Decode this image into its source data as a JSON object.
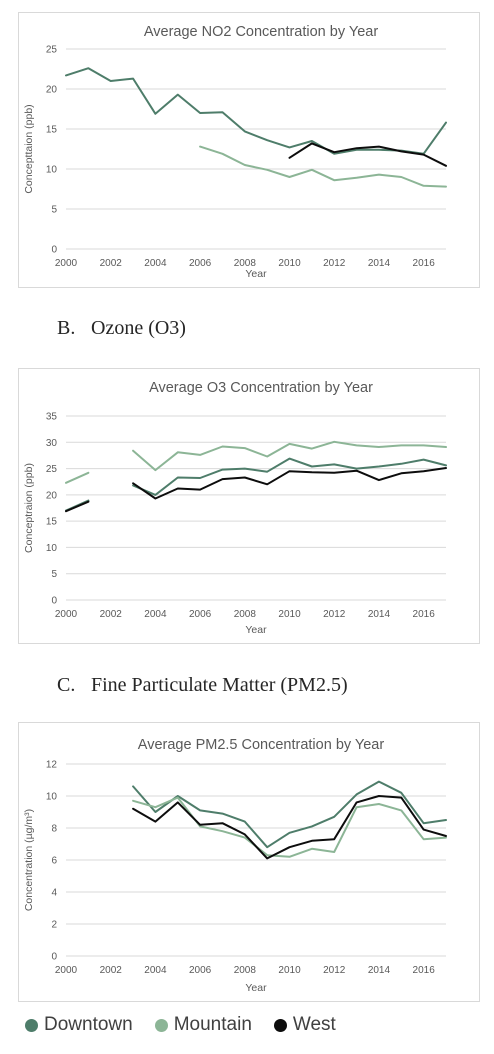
{
  "sections": [
    {
      "letter": "B.",
      "label": "Ozone (O3)"
    },
    {
      "letter": "C.",
      "label": "Fine Particulate Matter (PM2.5)"
    }
  ],
  "legend": [
    {
      "label": "Downtown",
      "color": "#4e7d6a"
    },
    {
      "label": "Mountain",
      "color": "#8cb596"
    },
    {
      "label": "West",
      "color": "#0d0d0d"
    }
  ],
  "chart_data": [
    {
      "type": "line",
      "title": "Average NO2 Concentration by Year",
      "xlabel": "Year",
      "ylabel": "Concepttaion (ppb)",
      "xlim": [
        2000,
        2017
      ],
      "ylim": [
        0,
        25
      ],
      "yticks": [
        0,
        5,
        10,
        15,
        20,
        25
      ],
      "xticks": [
        2000,
        2002,
        2004,
        2006,
        2008,
        2010,
        2012,
        2014,
        2016
      ],
      "grid": true,
      "series": [
        {
          "name": "Downtown",
          "color": "#4e7d6a",
          "x": [
            2000,
            2001,
            2002,
            2003,
            2004,
            2005,
            2006,
            2007,
            2008,
            2009,
            2010,
            2011,
            2012,
            2013,
            2014,
            2015,
            2016,
            2017
          ],
          "y": [
            21.7,
            22.6,
            21.0,
            21.3,
            16.9,
            19.3,
            17.0,
            17.1,
            14.7,
            13.6,
            12.7,
            13.5,
            11.9,
            12.4,
            12.4,
            12.3,
            11.9,
            15.8
          ]
        },
        {
          "name": "Mountain",
          "color": "#8cb596",
          "x": [
            2006,
            2007,
            2008,
            2009,
            2010,
            2011,
            2012,
            2013,
            2014,
            2015,
            2016,
            2017
          ],
          "y": [
            12.8,
            11.9,
            10.5,
            9.9,
            9.0,
            9.9,
            8.6,
            8.9,
            9.3,
            9.0,
            7.9,
            7.8
          ]
        },
        {
          "name": "West",
          "color": "#0d0d0d",
          "x": [
            2010,
            2011,
            2012,
            2013,
            2014,
            2015,
            2016,
            2017
          ],
          "y": [
            11.4,
            13.2,
            12.1,
            12.6,
            12.8,
            12.2,
            11.8,
            10.4
          ]
        }
      ]
    },
    {
      "type": "line",
      "title": "Average O3 Concentration by Year",
      "xlabel": "Year",
      "ylabel": "Conceptraion (ppb)",
      "xlim": [
        2000,
        2017
      ],
      "ylim": [
        0,
        35
      ],
      "yticks": [
        0,
        5,
        10,
        15,
        20,
        25,
        30,
        35
      ],
      "xticks": [
        2000,
        2002,
        2004,
        2006,
        2008,
        2010,
        2012,
        2014,
        2016
      ],
      "grid": true,
      "series": [
        {
          "name": "Downtown",
          "color": "#4e7d6a",
          "x": [
            2000,
            2001,
            2002,
            2003,
            2004,
            2005,
            2006,
            2007,
            2008,
            2009,
            2010,
            2011,
            2012,
            2013,
            2014,
            2015,
            2016,
            2017
          ],
          "y": [
            17.0,
            18.9,
            null,
            21.8,
            20.0,
            23.3,
            23.2,
            24.8,
            25.0,
            24.4,
            26.9,
            25.4,
            25.8,
            25.0,
            25.4,
            25.9,
            26.7,
            25.6
          ]
        },
        {
          "name": "Mountain",
          "color": "#8cb596",
          "x": [
            2000,
            2001,
            2002,
            2003,
            2004,
            2005,
            2006,
            2007,
            2008,
            2009,
            2010,
            2011,
            2012,
            2013,
            2014,
            2015,
            2016,
            2017
          ],
          "y": [
            22.3,
            24.2,
            null,
            28.4,
            24.7,
            28.1,
            27.6,
            29.2,
            28.9,
            27.3,
            29.7,
            28.8,
            30.1,
            29.4,
            29.1,
            29.4,
            29.4,
            29.1
          ]
        },
        {
          "name": "West",
          "color": "#0d0d0d",
          "x": [
            2000,
            2001,
            2002,
            2003,
            2004,
            2005,
            2006,
            2007,
            2008,
            2009,
            2010,
            2011,
            2012,
            2013,
            2014,
            2015,
            2016,
            2017
          ],
          "y": [
            16.9,
            18.7,
            null,
            22.2,
            19.3,
            21.2,
            21.0,
            23.0,
            23.3,
            22.0,
            24.5,
            24.3,
            24.2,
            24.6,
            22.8,
            24.1,
            24.5,
            25.1
          ]
        }
      ]
    },
    {
      "type": "line",
      "title": "Average PM2.5 Concentration by Year",
      "xlabel": "Year",
      "ylabel": "Concentration (µg/m³)",
      "xlim": [
        2000,
        2017
      ],
      "ylim": [
        0,
        12
      ],
      "yticks": [
        0,
        2,
        4,
        6,
        8,
        10,
        12
      ],
      "xticks": [
        2000,
        2002,
        2004,
        2006,
        2008,
        2010,
        2012,
        2014,
        2016
      ],
      "grid": true,
      "series": [
        {
          "name": "Downtown",
          "color": "#4e7d6a",
          "x": [
            2003,
            2004,
            2005,
            2006,
            2007,
            2008,
            2009,
            2010,
            2011,
            2012,
            2013,
            2014,
            2015,
            2016,
            2017
          ],
          "y": [
            10.6,
            9.0,
            10.0,
            9.1,
            8.9,
            8.4,
            6.8,
            7.7,
            8.1,
            8.7,
            10.1,
            10.9,
            10.2,
            8.3,
            8.5
          ]
        },
        {
          "name": "Mountain",
          "color": "#8cb596",
          "x": [
            2003,
            2004,
            2005,
            2006,
            2007,
            2008,
            2009,
            2010,
            2011,
            2012,
            2013,
            2014,
            2015,
            2016,
            2017
          ],
          "y": [
            9.7,
            9.3,
            9.9,
            8.1,
            7.8,
            7.4,
            6.3,
            6.2,
            6.7,
            6.5,
            9.3,
            9.5,
            9.1,
            7.3,
            7.4
          ]
        },
        {
          "name": "West",
          "color": "#0d0d0d",
          "x": [
            2003,
            2004,
            2005,
            2006,
            2007,
            2008,
            2009,
            2010,
            2011,
            2012,
            2013,
            2014,
            2015,
            2016,
            2017
          ],
          "y": [
            9.2,
            8.4,
            9.6,
            8.2,
            8.3,
            7.6,
            6.1,
            6.8,
            7.2,
            7.3,
            9.6,
            10.0,
            9.9,
            7.9,
            7.5
          ]
        }
      ]
    }
  ]
}
